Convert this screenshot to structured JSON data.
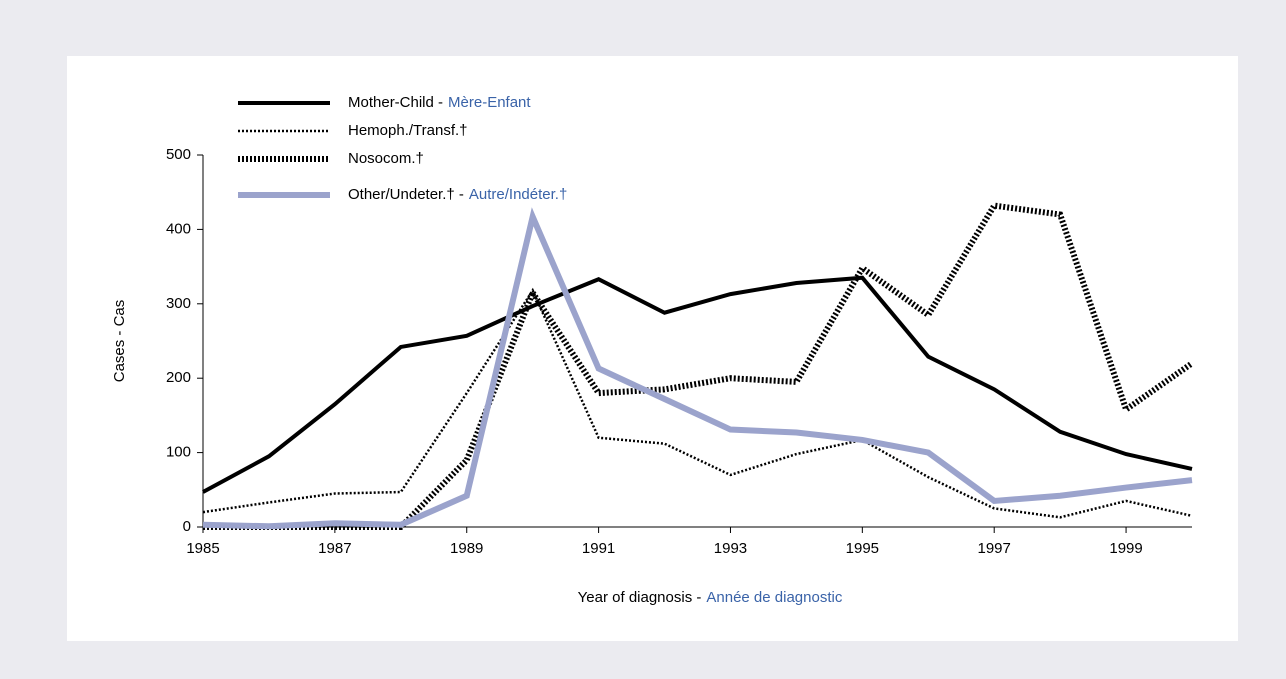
{
  "chart_data": {
    "type": "line",
    "ylabel": "Cases - Cas",
    "xlabel": "Year of diagnosis -",
    "xlabel_fr": "Année de diagnostic",
    "x": [
      1985,
      1986,
      1987,
      1988,
      1989,
      1990,
      1991,
      1992,
      1993,
      1994,
      1995,
      1996,
      1997,
      1998,
      1999,
      2000
    ],
    "xlim": [
      1985,
      2000
    ],
    "xticks": [
      1985,
      1987,
      1989,
      1991,
      1993,
      1995,
      1997,
      1999
    ],
    "ylim": [
      0,
      500
    ],
    "yticks": [
      0,
      100,
      200,
      300,
      400,
      500
    ],
    "legend": "upper left",
    "series": [
      {
        "name": "Mother-Child -",
        "name_fr": "Mère-Enfant",
        "color": "#000000",
        "style": "solid",
        "values": [
          47,
          95,
          165,
          242,
          257,
          297,
          333,
          288,
          313,
          328,
          335,
          229,
          185,
          128,
          98,
          78
        ]
      },
      {
        "name": "Hemoph./Transf.†",
        "color": "#000000",
        "style": "dotted",
        "values": [
          20,
          33,
          45,
          47,
          180,
          318,
          120,
          112,
          70,
          98,
          117,
          67,
          25,
          13,
          35,
          15
        ]
      },
      {
        "name": "Nosocom.†",
        "color": "#000000",
        "style": "thick-dotted",
        "values": [
          0,
          0,
          0,
          0,
          90,
          315,
          180,
          185,
          200,
          195,
          348,
          285,
          432,
          420,
          158,
          220
        ]
      },
      {
        "name": "Other/Undeter.† -",
        "name_fr": "Autre/Indéter.†",
        "color": "#9ba3cc",
        "style": "thick",
        "values": [
          3,
          1,
          5,
          3,
          42,
          417,
          213,
          172,
          131,
          127,
          117,
          100,
          35,
          42,
          53,
          63
        ]
      }
    ]
  }
}
